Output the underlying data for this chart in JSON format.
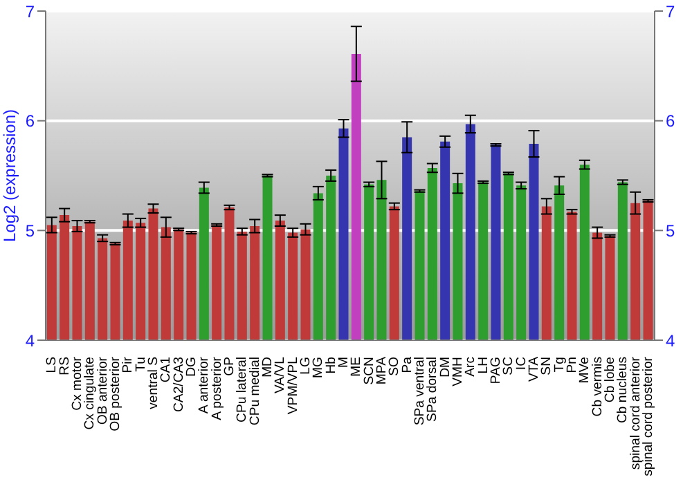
{
  "chart_data": {
    "type": "bar",
    "ylabel": "Log2 (expression)",
    "categories": [
      "LS",
      "RS",
      "Cx motor",
      "Cx cingulate",
      "OB anterior",
      "OB posterior",
      "Pir",
      "Tu",
      "ventral S",
      "CA1",
      "CA2/CA3",
      "DG",
      "A anterior",
      "A posterior",
      "GP",
      "CPu lateral",
      "CPu medial",
      "MD",
      "VA/VL",
      "VPM/VPL",
      "LG",
      "MG",
      "Hb",
      "M",
      "ME",
      "SCN",
      "MPA",
      "SO",
      "Pa",
      "SPa ventral",
      "SPa dorsal",
      "DM",
      "VMH",
      "Arc",
      "LH",
      "PAG",
      "SC",
      "IC",
      "VTA",
      "SN",
      "Tg",
      "Pn",
      "MVe",
      "Cb vermis",
      "Cb lobe",
      "Cb nucleus",
      "spinal cord anterior",
      "spinal cord posterior"
    ],
    "values": [
      5.05,
      5.14,
      5.04,
      5.08,
      4.93,
      4.88,
      5.09,
      5.07,
      5.2,
      5.03,
      5.01,
      4.98,
      5.39,
      5.05,
      5.21,
      4.99,
      5.04,
      5.5,
      5.09,
      4.98,
      5.01,
      5.34,
      5.5,
      5.93,
      6.61,
      5.42,
      5.46,
      5.22,
      5.85,
      5.36,
      5.57,
      5.81,
      5.43,
      5.97,
      5.44,
      5.78,
      5.52,
      5.41,
      5.79,
      5.22,
      5.41,
      5.17,
      5.6,
      4.98,
      4.95,
      5.44,
      5.25,
      5.27
    ],
    "errors": [
      0.07,
      0.06,
      0.05,
      0.01,
      0.03,
      0.01,
      0.06,
      0.04,
      0.04,
      0.09,
      0.01,
      0.01,
      0.05,
      0.01,
      0.02,
      0.03,
      0.06,
      0.01,
      0.05,
      0.04,
      0.05,
      0.06,
      0.05,
      0.08,
      0.25,
      0.02,
      0.17,
      0.03,
      0.14,
      0.01,
      0.04,
      0.05,
      0.09,
      0.08,
      0.01,
      0.01,
      0.01,
      0.03,
      0.12,
      0.07,
      0.08,
      0.02,
      0.04,
      0.05,
      0.01,
      0.02,
      0.1,
      0.01
    ],
    "colors": [
      "#c03a3a",
      "#c03a3a",
      "#c03a3a",
      "#c03a3a",
      "#c03a3a",
      "#c03a3a",
      "#c03a3a",
      "#c03a3a",
      "#c03a3a",
      "#c03a3a",
      "#c03a3a",
      "#c03a3a",
      "#2e9e2e",
      "#c03a3a",
      "#c03a3a",
      "#c03a3a",
      "#c03a3a",
      "#2e9e2e",
      "#c03a3a",
      "#c03a3a",
      "#c03a3a",
      "#2e9e2e",
      "#2e9e2e",
      "#3535b0",
      "#c040c0",
      "#2e9e2e",
      "#2e9e2e",
      "#c03a3a",
      "#3535b0",
      "#2e9e2e",
      "#2e9e2e",
      "#3535b0",
      "#2e9e2e",
      "#3535b0",
      "#2e9e2e",
      "#3535b0",
      "#2e9e2e",
      "#2e9e2e",
      "#3535b0",
      "#c03a3a",
      "#2e9e2e",
      "#c03a3a",
      "#2e9e2e",
      "#c03a3a",
      "#c03a3a",
      "#2e9e2e",
      "#c03a3a",
      "#c03a3a"
    ],
    "ylim": [
      4,
      7
    ],
    "yticks": [
      4,
      5,
      6,
      7
    ],
    "y2lim": [
      4,
      7
    ],
    "y2ticks": [
      4,
      5,
      6,
      7
    ],
    "grid": "y"
  }
}
